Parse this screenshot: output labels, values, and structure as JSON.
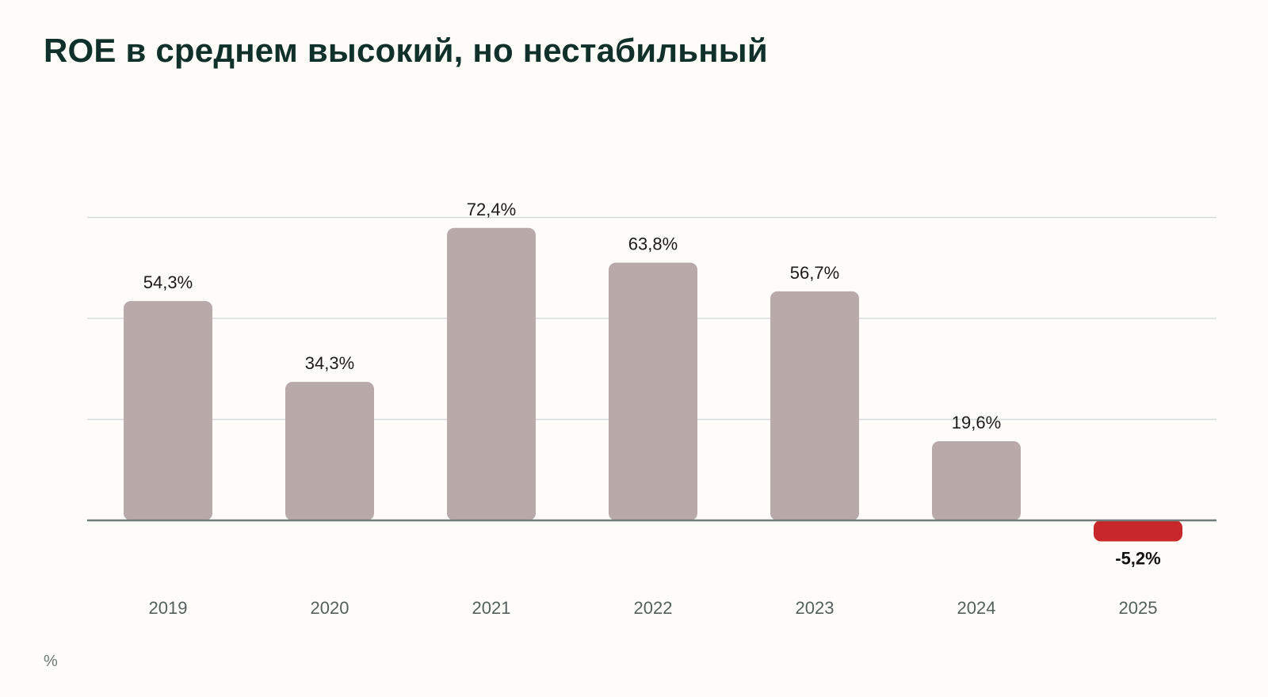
{
  "title": "ROE в среднем высокий, но нестабильный",
  "unit_note": "%",
  "colors": {
    "bar": "#b8aaa9",
    "bar_negative": "#c9282b",
    "gridline": "#d6dcda",
    "baseline": "#6f7c79",
    "title": "#10302a"
  },
  "chart_data": {
    "type": "bar",
    "categories": [
      "2019",
      "2020",
      "2021",
      "2022",
      "2023",
      "2024",
      "2025"
    ],
    "values": [
      54.3,
      34.3,
      72.4,
      63.8,
      56.7,
      19.6,
      -5.2
    ],
    "value_labels": [
      "54,3%",
      "34,3%",
      "72,4%",
      "63,8%",
      "56,7%",
      "19,6%",
      "-5,2%"
    ],
    "gridlines": [
      0,
      25,
      50,
      75
    ],
    "ylim": [
      -10,
      80
    ],
    "xlabel": "",
    "ylabel": "",
    "grid": true,
    "legend": "none"
  }
}
